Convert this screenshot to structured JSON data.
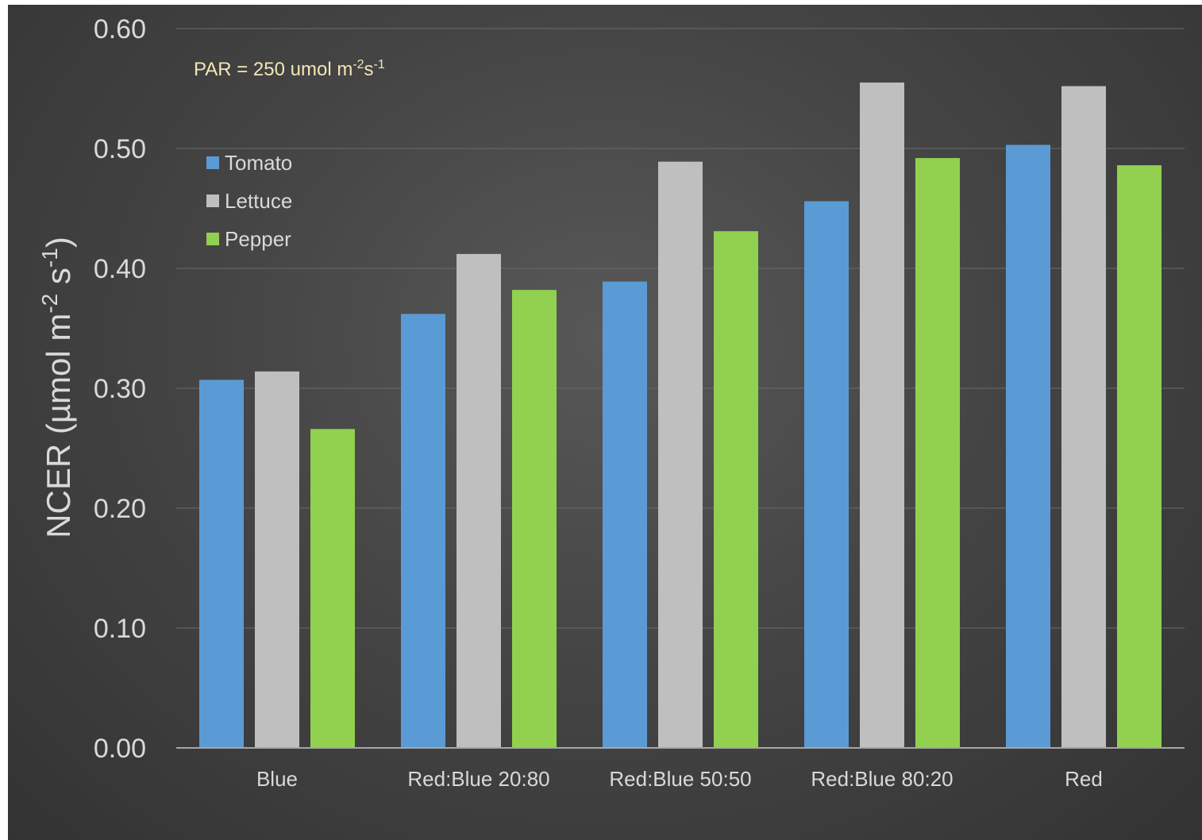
{
  "chart_data": {
    "type": "bar",
    "categories": [
      "Blue",
      "Red:Blue 20:80",
      "Red:Blue 50:50",
      "Red:Blue 80:20",
      "Red"
    ],
    "series": [
      {
        "name": "Tomato",
        "color": "#5b9bd5",
        "values": [
          0.307,
          0.362,
          0.389,
          0.456,
          0.503
        ]
      },
      {
        "name": "Lettuce",
        "color": "#bfbfbf",
        "values": [
          0.314,
          0.412,
          0.489,
          0.555,
          0.552
        ]
      },
      {
        "name": "Pepper",
        "color": "#92d050",
        "values": [
          0.266,
          0.382,
          0.431,
          0.492,
          0.486
        ]
      }
    ],
    "y_ticks": [
      "0.00",
      "0.10",
      "0.20",
      "0.30",
      "0.40",
      "0.50",
      "0.60"
    ],
    "ylim": [
      0,
      0.6
    ],
    "ylabel": {
      "main": "NCER (µmol m",
      "sup1": "-2",
      "mid": " s",
      "sup2": "-1",
      "end": ")"
    },
    "annotation": {
      "main": "PAR = 250 umol m",
      "sup1": "-2",
      "mid": "s",
      "sup2": "-1"
    },
    "legend_position": "upper-left",
    "grid": true
  }
}
